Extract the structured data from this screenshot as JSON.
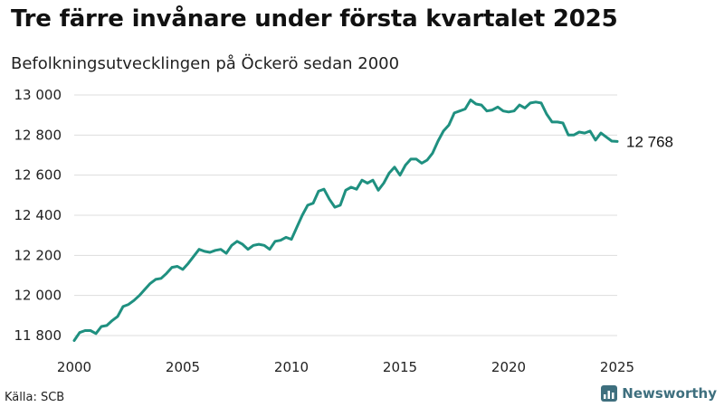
{
  "header": {
    "title": "Tre färre invånare under första kvartalet 2025",
    "subtitle": "Befolkningsutvecklingen på Öckerö sedan 2000"
  },
  "footer": {
    "source": "Källa: SCB",
    "brand": "Newsworthy",
    "brand_color": "#3e6f7e"
  },
  "chart_data": {
    "type": "line",
    "xlim": [
      2000,
      2025
    ],
    "ylim": [
      11750,
      13050
    ],
    "x_ticks": [
      2000,
      2005,
      2010,
      2015,
      2020,
      2025
    ],
    "x_tick_labels": [
      "2000",
      "2005",
      "2010",
      "2015",
      "2020",
      "2025"
    ],
    "y_ticks": [
      11800,
      12000,
      12200,
      12400,
      12600,
      12800,
      13000
    ],
    "y_tick_labels": [
      "11 800",
      "12 000",
      "12 200",
      "12 400",
      "12 600",
      "12 800",
      "13 000"
    ],
    "grid": "horizontal",
    "line_color": "#1f9080",
    "end_label": "12 768",
    "series": [
      {
        "x": [
          2000.0,
          2000.25,
          2000.5,
          2000.75,
          2001.0,
          2001.25,
          2001.5,
          2001.75,
          2002.0,
          2002.25,
          2002.5,
          2002.75,
          2003.0,
          2003.25,
          2003.5,
          2003.75,
          2004.0,
          2004.25,
          2004.5,
          2004.75,
          2005.0,
          2005.25,
          2005.5,
          2005.75,
          2006.0,
          2006.25,
          2006.5,
          2006.75,
          2007.0,
          2007.25,
          2007.5,
          2007.75,
          2008.0,
          2008.25,
          2008.5,
          2008.75,
          2009.0,
          2009.25,
          2009.5,
          2009.75,
          2010.0,
          2010.25,
          2010.5,
          2010.75,
          2011.0,
          2011.25,
          2011.5,
          2011.75,
          2012.0,
          2012.25,
          2012.5,
          2012.75,
          2013.0,
          2013.25,
          2013.5,
          2013.75,
          2014.0,
          2014.25,
          2014.5,
          2014.75,
          2015.0,
          2015.25,
          2015.5,
          2015.75,
          2016.0,
          2016.25,
          2016.5,
          2016.75,
          2017.0,
          2017.25,
          2017.5,
          2017.75,
          2018.0,
          2018.25,
          2018.5,
          2018.75,
          2019.0,
          2019.25,
          2019.5,
          2019.75,
          2020.0,
          2020.25,
          2020.5,
          2020.75,
          2021.0,
          2021.25,
          2021.5,
          2021.75,
          2022.0,
          2022.25,
          2022.5,
          2022.75,
          2023.0,
          2023.25,
          2023.5,
          2023.75,
          2024.0,
          2024.25,
          2024.5,
          2024.75,
          2025.0
        ],
        "y": [
          11775,
          11815,
          11825,
          11825,
          11810,
          11845,
          11850,
          11875,
          11895,
          11945,
          11955,
          11975,
          12000,
          12030,
          12060,
          12080,
          12085,
          12110,
          12140,
          12145,
          12130,
          12160,
          12195,
          12230,
          12220,
          12215,
          12225,
          12230,
          12210,
          12250,
          12270,
          12255,
          12230,
          12250,
          12255,
          12250,
          12230,
          12270,
          12275,
          12290,
          12280,
          12340,
          12400,
          12450,
          12460,
          12520,
          12530,
          12480,
          12440,
          12450,
          12525,
          12540,
          12530,
          12575,
          12560,
          12575,
          12525,
          12560,
          12610,
          12640,
          12600,
          12650,
          12680,
          12680,
          12660,
          12675,
          12710,
          12770,
          12820,
          12850,
          12910,
          12920,
          12930,
          12975,
          12955,
          12950,
          12920,
          12925,
          12940,
          12920,
          12915,
          12920,
          12950,
          12935,
          12960,
          12965,
          12960,
          12905,
          12865,
          12865,
          12860,
          12800,
          12800,
          12815,
          12810,
          12820,
          12775,
          12810,
          12790,
          12770,
          12768
        ]
      }
    ]
  }
}
